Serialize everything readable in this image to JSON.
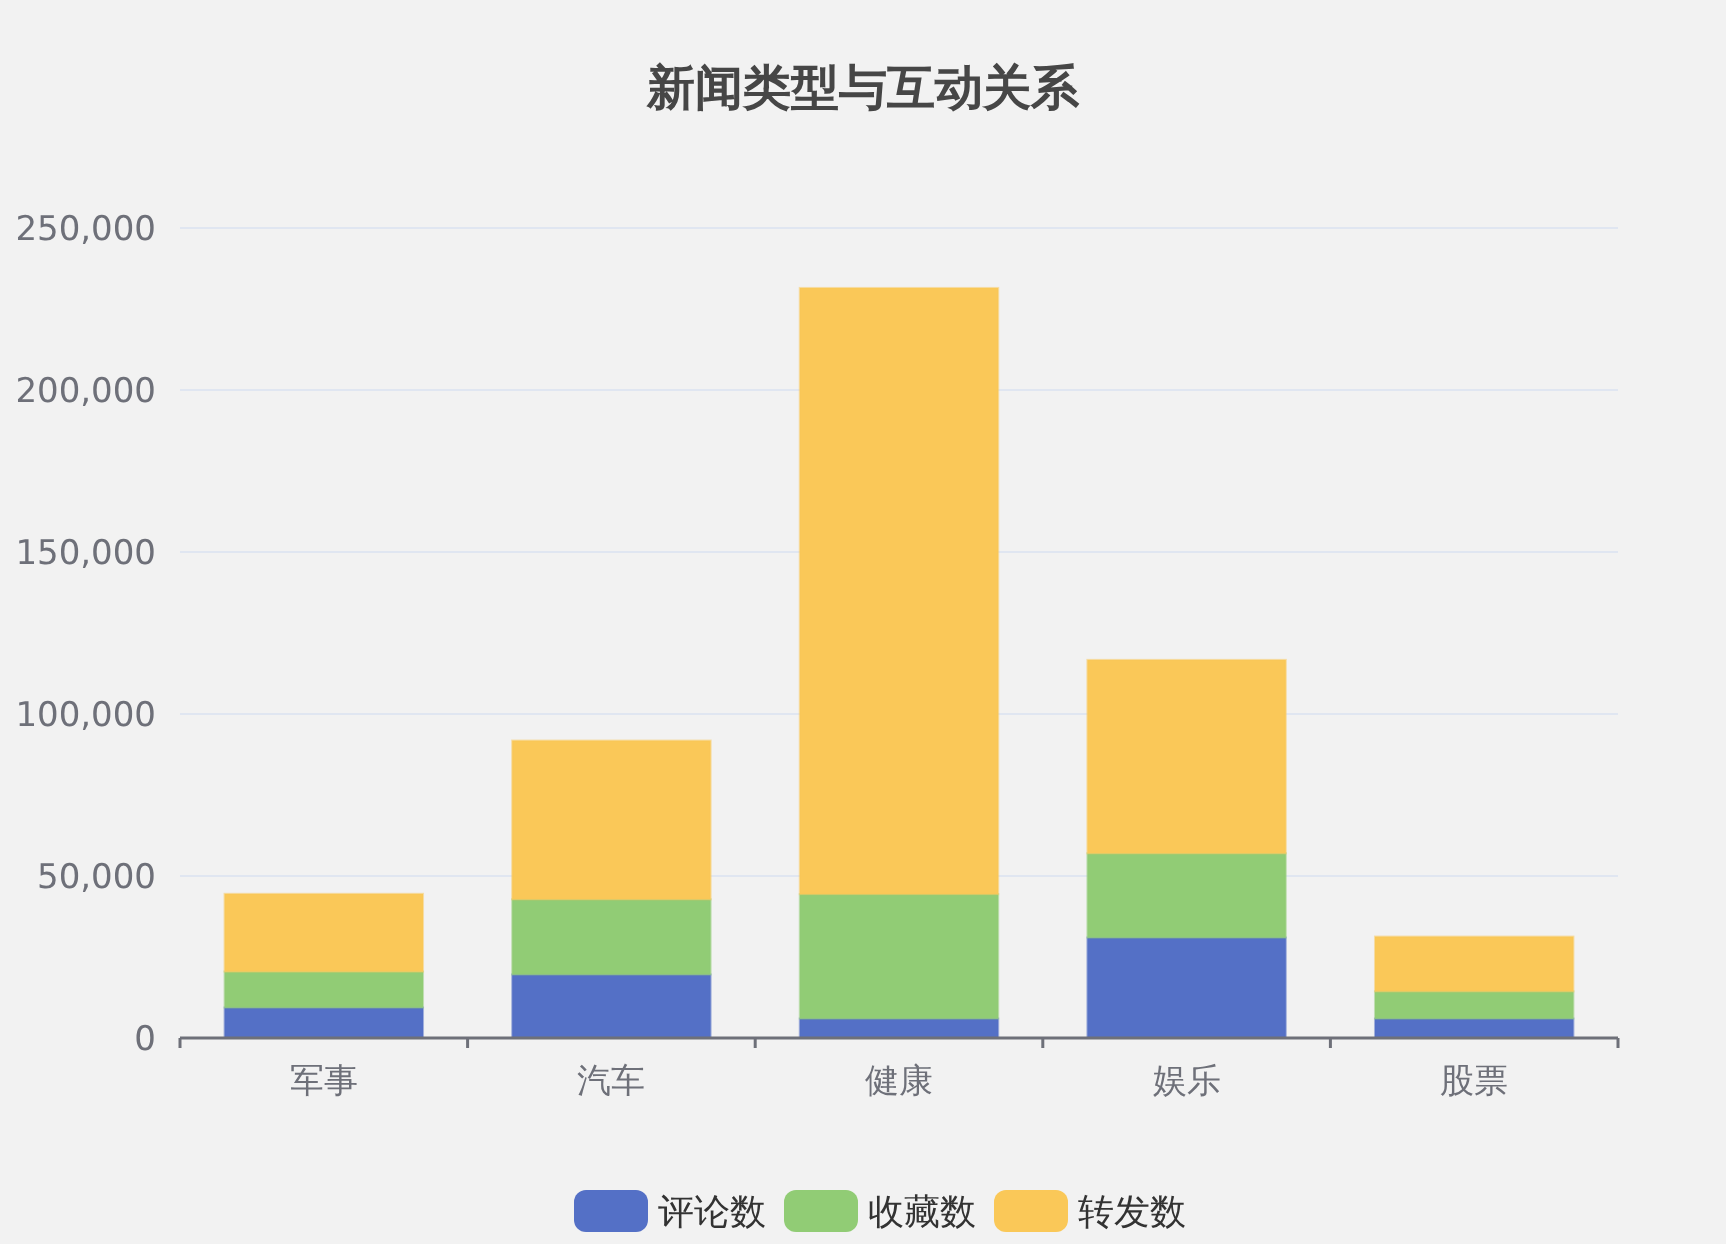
{
  "chart_data": {
    "type": "bar",
    "title": "新闻类型与互动关系",
    "categories": [
      "军事",
      "汽车",
      "健康",
      "娱乐",
      "股票"
    ],
    "stacked": true,
    "series": [
      {
        "name": "评论数",
        "color": "#5470c6",
        "values": [
          9400,
          19600,
          6000,
          31000,
          6000
        ]
      },
      {
        "name": "收藏数",
        "color": "#91cc75",
        "values": [
          11100,
          23200,
          38400,
          26000,
          8400
        ]
      },
      {
        "name": "转发数",
        "color": "#fac858",
        "values": [
          24000,
          49000,
          187100,
          59700,
          16900
        ]
      }
    ],
    "ylim": [
      0,
      250000
    ],
    "yticks": [
      {
        "value": 0,
        "label": "0"
      },
      {
        "value": 50000,
        "label": "50,000"
      },
      {
        "value": 100000,
        "label": "100,000"
      },
      {
        "value": 150000,
        "label": "150,000"
      },
      {
        "value": 200000,
        "label": "200,000"
      },
      {
        "value": 250000,
        "label": "250,000"
      }
    ],
    "grid": "y",
    "legend": "bottom"
  }
}
